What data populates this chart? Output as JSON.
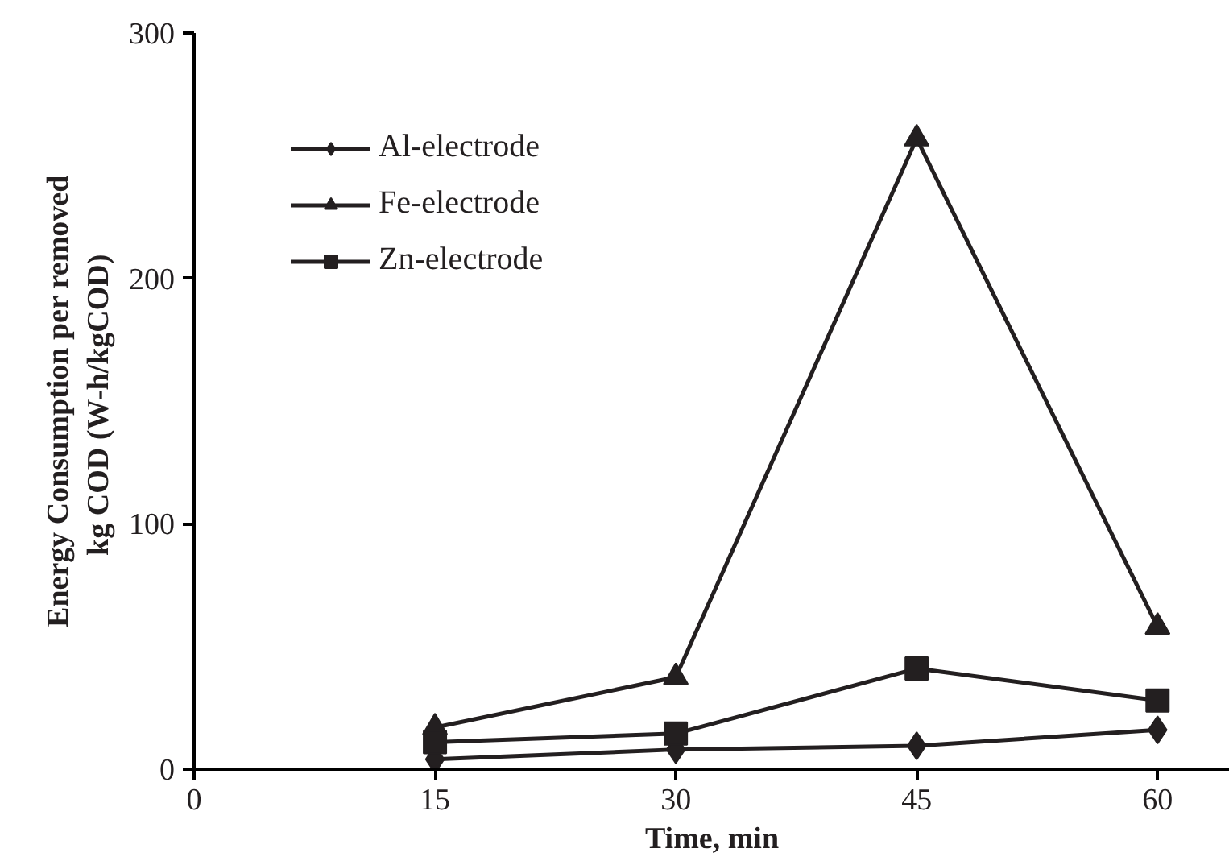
{
  "chart_data": {
    "type": "line",
    "xlabel": "Time, min",
    "ylabel": "Energy Consumption per removed\nkg COD  (W-h/kgCOD)",
    "x": [
      15,
      30,
      45,
      60
    ],
    "xlim": [
      0,
      64.5
    ],
    "xticks": [
      0,
      15,
      30,
      45,
      60
    ],
    "ylim": [
      0,
      300
    ],
    "yticks": [
      0,
      100,
      200,
      300
    ],
    "series": [
      {
        "name": "Al-electrode",
        "color": "#231f20",
        "marker": "diamond",
        "values": [
          4,
          8,
          9.5,
          16
        ]
      },
      {
        "name": "Fe-electrode",
        "color": "#231f20",
        "marker": "triangle",
        "values": [
          17,
          37.5,
          257,
          58
        ]
      },
      {
        "name": "Zn-electrode",
        "color": "#231f20",
        "marker": "square",
        "values": [
          11,
          14.5,
          41,
          28
        ]
      }
    ],
    "legend": "top left",
    "grid": false,
    "line_style": "solid"
  }
}
